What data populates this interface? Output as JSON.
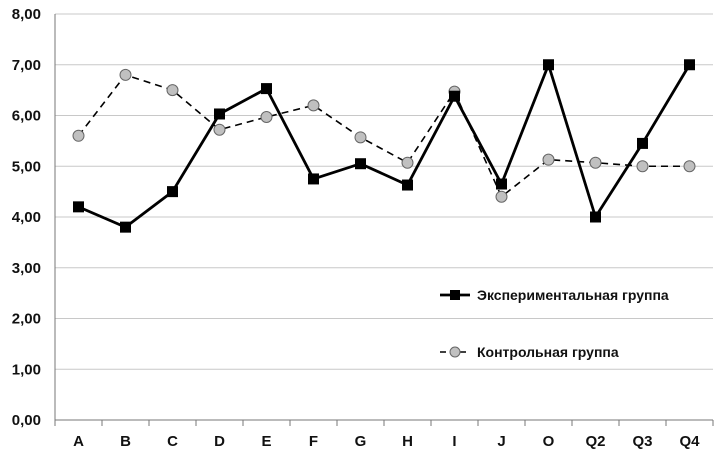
{
  "chart_data": {
    "type": "line",
    "categories": [
      "A",
      "B",
      "C",
      "D",
      "E",
      "F",
      "G",
      "H",
      "I",
      "J",
      "O",
      "Q2",
      "Q3",
      "Q4"
    ],
    "y_tick_labels": [
      "0,00",
      "1,00",
      "2,00",
      "3,00",
      "4,00",
      "5,00",
      "6,00",
      "7,00",
      "8,00"
    ],
    "ylim": [
      0,
      8
    ],
    "grid": "horizontal",
    "legend_position": "right",
    "series": [
      {
        "name": "Экспериментальная группа",
        "values": [
          4.2,
          3.8,
          4.5,
          6.03,
          6.53,
          4.75,
          5.05,
          4.63,
          6.38,
          4.65,
          7.0,
          4.0,
          5.45,
          7.0
        ],
        "style": "solid",
        "marker": "square",
        "color": "#000000"
      },
      {
        "name": "Контрольная группа",
        "values": [
          5.6,
          6.8,
          6.5,
          5.72,
          5.97,
          6.2,
          5.57,
          5.07,
          6.47,
          4.4,
          5.13,
          5.07,
          5.0,
          5.0
        ],
        "style": "dashed",
        "marker": "circle",
        "color": "#000000",
        "marker_fill": "#c0c0c0"
      }
    ]
  }
}
